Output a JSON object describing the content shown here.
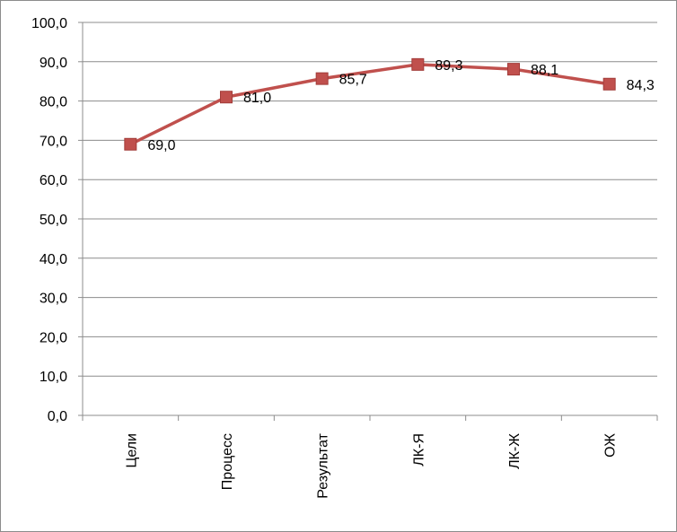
{
  "chart_data": {
    "type": "line",
    "categories": [
      "Цели",
      "Процесс",
      "Результат",
      "ЛК-Я",
      "ЛК-Ж",
      "ОЖ"
    ],
    "series": [
      {
        "values": [
          69.0,
          81.0,
          85.7,
          89.3,
          88.1,
          84.3
        ],
        "data_labels": [
          "69,0",
          "81,0",
          "85,7",
          "89,3",
          "88,1",
          "84,3"
        ],
        "color": "#c0504d",
        "marker": "square"
      }
    ],
    "ylim": [
      0,
      100
    ],
    "y_ticks": [
      0,
      10,
      20,
      30,
      40,
      50,
      60,
      70,
      80,
      90,
      100
    ],
    "y_tick_labels": [
      "0,0",
      "10,0",
      "20,0",
      "30,0",
      "40,0",
      "50,0",
      "60,0",
      "70,0",
      "80,0",
      "90,0",
      "100,0"
    ],
    "grid": true,
    "legend": "none",
    "title": "",
    "xlabel": "",
    "ylabel": ""
  }
}
